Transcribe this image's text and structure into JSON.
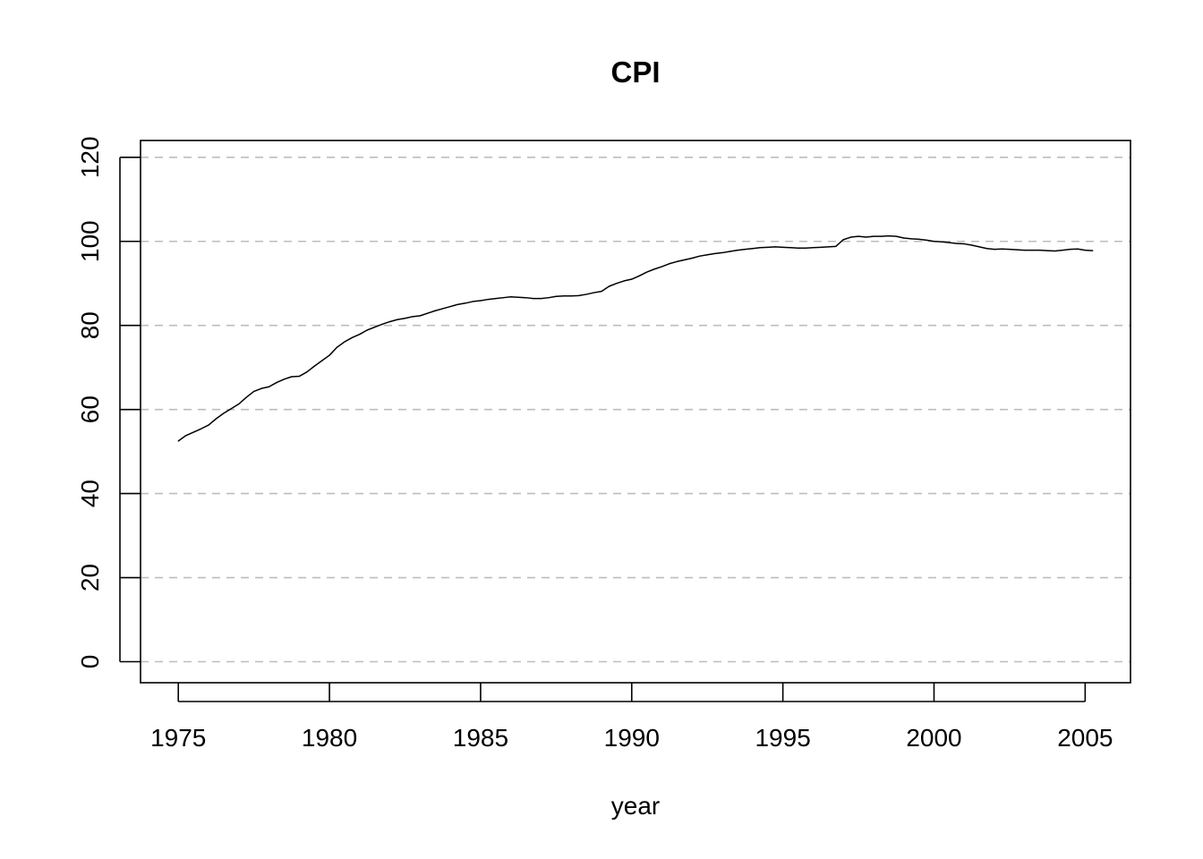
{
  "chart_data": {
    "type": "line",
    "title": "CPI",
    "xlabel": "year",
    "ylabel": "",
    "xlim": [
      1973.75,
      2006.5
    ],
    "ylim": [
      -5,
      124
    ],
    "x_ticks": [
      1975,
      1980,
      1985,
      1990,
      1995,
      2000,
      2005
    ],
    "y_ticks": [
      0,
      20,
      40,
      60,
      80,
      100,
      120
    ],
    "grid": "horizontal dashed at y ticks",
    "grid_color": "#bdbdbd",
    "line_color": "#000000",
    "series": [
      {
        "x": [
          1975.0,
          1975.25,
          1975.5,
          1975.75,
          1976.0,
          1976.25,
          1976.5,
          1976.75,
          1977.0,
          1977.25,
          1977.5,
          1977.75,
          1978.0,
          1978.25,
          1978.5,
          1978.75,
          1979.0,
          1979.25,
          1979.5,
          1979.75,
          1980.0,
          1980.25,
          1980.5,
          1980.75,
          1981.0,
          1981.25,
          1981.5,
          1981.75,
          1982.0,
          1982.25,
          1982.5,
          1982.75,
          1983.0,
          1983.25,
          1983.5,
          1983.75,
          1984.0,
          1984.25,
          1984.5,
          1984.75,
          1985.0,
          1985.25,
          1985.5,
          1985.75,
          1986.0,
          1986.25,
          1986.5,
          1986.75,
          1987.0,
          1987.25,
          1987.5,
          1987.75,
          1988.0,
          1988.25,
          1988.5,
          1988.75,
          1989.0,
          1989.25,
          1989.5,
          1989.75,
          1990.0,
          1990.25,
          1990.5,
          1990.75,
          1991.0,
          1991.25,
          1991.5,
          1991.75,
          1992.0,
          1992.25,
          1992.5,
          1992.75,
          1993.0,
          1993.25,
          1993.5,
          1993.75,
          1994.0,
          1994.25,
          1994.5,
          1994.75,
          1995.0,
          1995.25,
          1995.5,
          1995.75,
          1996.0,
          1996.25,
          1996.5,
          1996.75,
          1997.0,
          1997.25,
          1997.5,
          1997.75,
          1998.0,
          1998.25,
          1998.5,
          1998.75,
          1999.0,
          1999.25,
          1999.5,
          1999.75,
          2000.0,
          2000.25,
          2000.5,
          2000.75,
          2001.0,
          2001.25,
          2001.5,
          2001.75,
          2002.0,
          2002.25,
          2002.5,
          2002.75,
          2003.0,
          2003.25,
          2003.5,
          2003.75,
          2004.0,
          2004.25,
          2004.5,
          2004.75,
          2005.0,
          2005.25
        ],
        "values": [
          52.5,
          53.8,
          54.6,
          55.4,
          56.3,
          57.8,
          59.1,
          60.2,
          61.3,
          62.9,
          64.3,
          65.0,
          65.4,
          66.4,
          67.2,
          67.8,
          67.9,
          68.9,
          70.3,
          71.6,
          72.9,
          74.8,
          76.1,
          77.1,
          77.9,
          78.9,
          79.6,
          80.3,
          80.9,
          81.4,
          81.7,
          82.1,
          82.3,
          82.9,
          83.5,
          84.0,
          84.5,
          85.0,
          85.3,
          85.7,
          85.9,
          86.2,
          86.4,
          86.6,
          86.8,
          86.7,
          86.6,
          86.4,
          86.4,
          86.6,
          86.9,
          87.0,
          87.0,
          87.1,
          87.4,
          87.8,
          88.1,
          89.3,
          90.0,
          90.6,
          91.0,
          91.8,
          92.7,
          93.4,
          94.0,
          94.7,
          95.2,
          95.6,
          96.0,
          96.5,
          96.8,
          97.1,
          97.3,
          97.6,
          97.9,
          98.1,
          98.3,
          98.5,
          98.6,
          98.7,
          98.6,
          98.5,
          98.4,
          98.4,
          98.5,
          98.6,
          98.7,
          98.8,
          100.4,
          101.0,
          101.2,
          101.0,
          101.2,
          101.2,
          101.3,
          101.2,
          100.8,
          100.6,
          100.5,
          100.3,
          100.0,
          99.9,
          99.7,
          99.5,
          99.4,
          99.1,
          98.7,
          98.3,
          98.1,
          98.2,
          98.1,
          98.0,
          97.9,
          97.9,
          97.9,
          97.8,
          97.7,
          97.9,
          98.1,
          98.2,
          97.9,
          97.8
        ]
      }
    ]
  }
}
